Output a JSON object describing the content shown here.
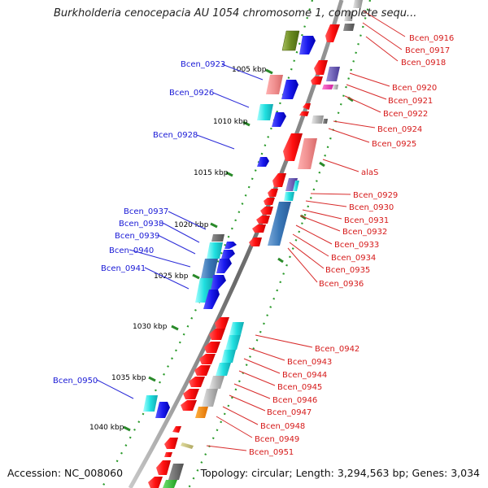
{
  "title": "Burkholderia cenocepacia AU 1054 chromosome 1, complete sequ...",
  "footer": {
    "accession": "Accession: NC_008060",
    "topology": "Topology: circular; Length: 3,294,563 bp; Genes: 3,034"
  },
  "colors": {
    "left_labels": "#1a1ad6",
    "right_labels": "#d61a1a",
    "leader_left": "#2b2bd8",
    "leader_right": "#d82b2b"
  },
  "ticks": [
    "1005 kbp",
    "1010 kbp",
    "1015 kbp",
    "1020 kbp",
    "1025 kbp",
    "1030 kbp",
    "1035 kbp",
    "1040 kbp"
  ],
  "left_labels": [
    "Bcen_0923",
    "Bcen_0926",
    "Bcen_0928",
    "Bcen_0937",
    "Bcen_0938",
    "Bcen_0939",
    "Bcen_0940",
    "Bcen_0941",
    "Bcen_0950"
  ],
  "right_labels": [
    "Bcen_0916",
    "Bcen_0917",
    "Bcen_0918",
    "Bcen_0920",
    "Bcen_0921",
    "Bcen_0922",
    "Bcen_0924",
    "Bcen_0925",
    "alaS",
    "Bcen_0929",
    "Bcen_0930",
    "Bcen_0931",
    "Bcen_0932",
    "Bcen_0933",
    "Bcen_0934",
    "Bcen_0935",
    "Bcen_0936",
    "Bcen_0942",
    "Bcen_0943",
    "Bcen_0944",
    "Bcen_0945",
    "Bcen_0946",
    "Bcen_0947",
    "Bcen_0948",
    "Bcen_0949",
    "Bcen_0951"
  ]
}
